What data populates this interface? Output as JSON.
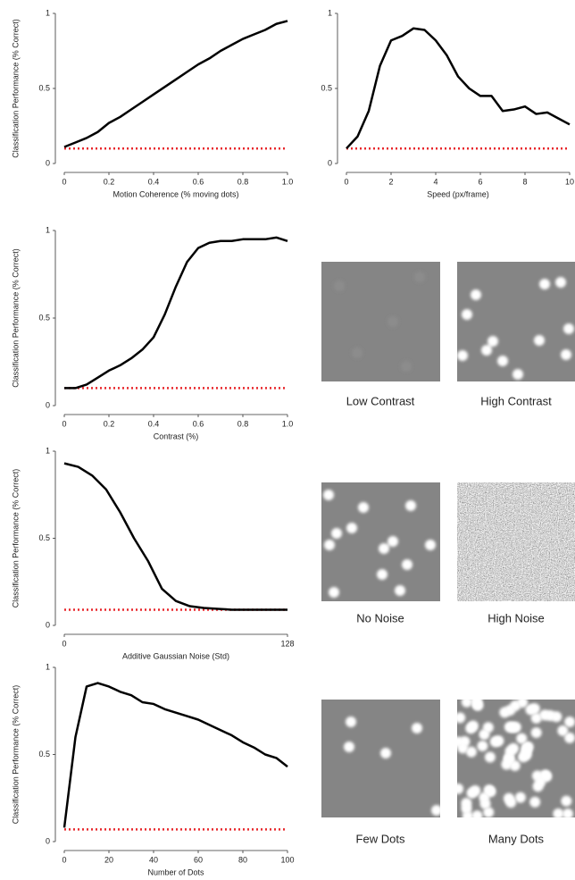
{
  "chart_data": [
    {
      "type": "line",
      "xlabel": "Motion Coherence (% moving dots)",
      "ylabel": "Classification Performance (% Correct)",
      "x": [
        0,
        0.05,
        0.1,
        0.15,
        0.2,
        0.25,
        0.3,
        0.35,
        0.4,
        0.45,
        0.5,
        0.55,
        0.6,
        0.65,
        0.7,
        0.75,
        0.8,
        0.85,
        0.9,
        0.95,
        1.0
      ],
      "series": [
        {
          "color": "#000000",
          "values": [
            0.11,
            0.14,
            0.17,
            0.21,
            0.27,
            0.31,
            0.36,
            0.41,
            0.46,
            0.51,
            0.56,
            0.61,
            0.66,
            0.7,
            0.75,
            0.79,
            0.83,
            0.86,
            0.89,
            0.93,
            0.95
          ]
        }
      ],
      "hline": {
        "value": 0.1,
        "color": "#e8272c"
      },
      "xlim": [
        0,
        1
      ],
      "xticks": [
        0,
        0.2,
        0.4,
        0.6,
        0.8,
        {
          "value": 1,
          "label": "1.0"
        }
      ],
      "ylim": [
        0,
        1
      ],
      "yticks": [
        0,
        0.5,
        1
      ]
    },
    {
      "type": "line",
      "xlabel": "Speed (px/frame)",
      "x": [
        0,
        0.5,
        1,
        1.5,
        2,
        2.5,
        3,
        3.5,
        4,
        4.5,
        5,
        5.5,
        6,
        6.5,
        7,
        7.5,
        8,
        8.5,
        9,
        9.5,
        10
      ],
      "series": [
        {
          "color": "#000000",
          "values": [
            0.1,
            0.18,
            0.35,
            0.65,
            0.82,
            0.85,
            0.9,
            0.89,
            0.82,
            0.72,
            0.58,
            0.5,
            0.45,
            0.45,
            0.35,
            0.36,
            0.38,
            0.33,
            0.34,
            0.3,
            0.26
          ]
        }
      ],
      "hline": {
        "value": 0.1,
        "color": "#e8272c"
      },
      "xlim": [
        0,
        10
      ],
      "xticks": [
        0,
        2,
        4,
        6,
        8,
        10
      ],
      "ylim": [
        0,
        1
      ],
      "yticks": [
        0,
        0.5,
        1
      ]
    },
    {
      "type": "line",
      "xlabel": "Contrast (%)",
      "ylabel": "Classification Performance (% Correct)",
      "x": [
        0,
        0.05,
        0.1,
        0.15,
        0.2,
        0.25,
        0.3,
        0.35,
        0.4,
        0.45,
        0.5,
        0.55,
        0.6,
        0.65,
        0.7,
        0.75,
        0.8,
        0.85,
        0.9,
        0.95,
        1.0
      ],
      "series": [
        {
          "color": "#000000",
          "values": [
            0.1,
            0.1,
            0.12,
            0.16,
            0.2,
            0.23,
            0.27,
            0.32,
            0.39,
            0.52,
            0.68,
            0.82,
            0.9,
            0.93,
            0.94,
            0.94,
            0.95,
            0.95,
            0.95,
            0.96,
            0.94
          ]
        }
      ],
      "hline": {
        "value": 0.1,
        "color": "#e8272c"
      },
      "xlim": [
        0,
        1
      ],
      "xticks": [
        0,
        0.2,
        0.4,
        0.6,
        0.8,
        {
          "value": 1,
          "label": "1.0"
        }
      ],
      "ylim": [
        0,
        1
      ],
      "yticks": [
        0,
        0.5,
        1
      ]
    },
    {
      "type": "line",
      "xlabel": "Additive Gaussian Noise (Std)",
      "ylabel": "Classification Performance (% Correct)",
      "x": [
        0,
        8,
        16,
        24,
        32,
        40,
        48,
        56,
        64,
        72,
        80,
        88,
        96,
        104,
        112,
        120,
        128
      ],
      "series": [
        {
          "color": "#000000",
          "values": [
            0.93,
            0.91,
            0.86,
            0.78,
            0.65,
            0.5,
            0.37,
            0.21,
            0.14,
            0.11,
            0.1,
            0.095,
            0.09,
            0.09,
            0.09,
            0.09,
            0.09
          ]
        }
      ],
      "hline": {
        "value": 0.09,
        "color": "#e8272c"
      },
      "xlim": [
        0,
        128
      ],
      "xticks": [
        0,
        128
      ],
      "ylim": [
        0,
        1
      ],
      "yticks": [
        0,
        0.5,
        1
      ]
    },
    {
      "type": "line",
      "xlabel": "Number of Dots",
      "ylabel": "Classification Performance (% Correct)",
      "x": [
        0,
        5,
        10,
        15,
        20,
        25,
        30,
        35,
        40,
        45,
        50,
        55,
        60,
        65,
        70,
        75,
        80,
        85,
        90,
        95,
        100
      ],
      "series": [
        {
          "color": "#000000",
          "values": [
            0.08,
            0.6,
            0.89,
            0.91,
            0.89,
            0.86,
            0.84,
            0.8,
            0.79,
            0.76,
            0.74,
            0.72,
            0.7,
            0.67,
            0.64,
            0.61,
            0.57,
            0.54,
            0.5,
            0.48,
            0.43
          ]
        }
      ],
      "hline": {
        "value": 0.07,
        "color": "#e8272c"
      },
      "xlim": [
        0,
        100
      ],
      "xticks": [
        0,
        20,
        40,
        60,
        80,
        100
      ],
      "ylim": [
        0,
        1
      ],
      "yticks": [
        0,
        0.5,
        1
      ]
    }
  ],
  "examples": [
    {
      "caption": "Low Contrast"
    },
    {
      "caption": "High Contrast"
    },
    {
      "caption": "No Noise"
    },
    {
      "caption": "High Noise"
    },
    {
      "caption": "Few Dots"
    },
    {
      "caption": "Many Dots"
    }
  ]
}
